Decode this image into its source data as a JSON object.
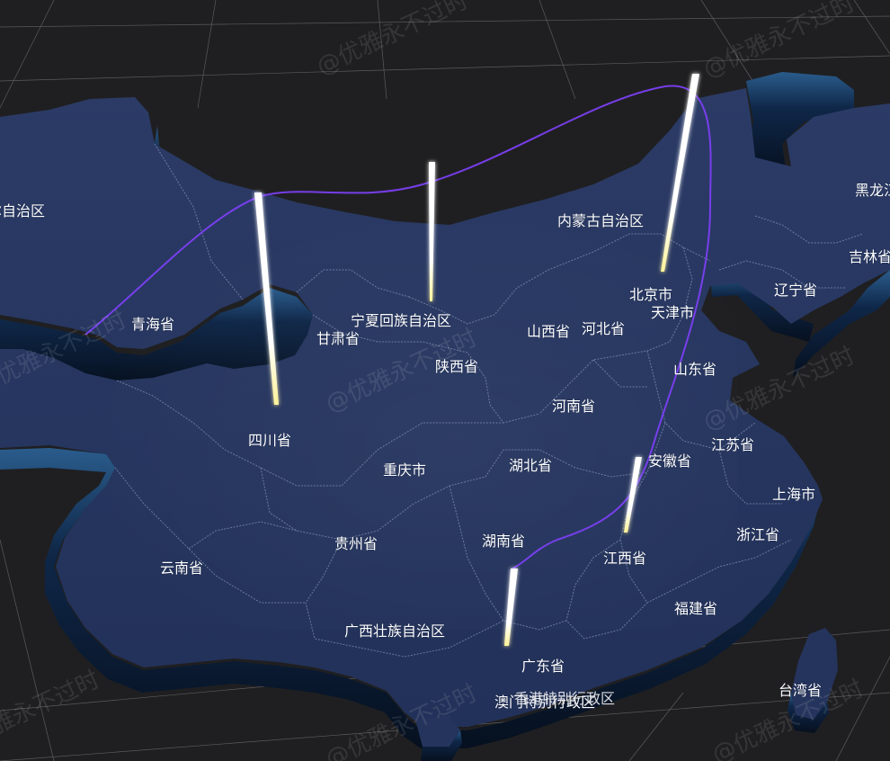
{
  "map": {
    "colors": {
      "background": "#1f1f21",
      "land_top": "#25345c",
      "land_side": "#0c1a33",
      "border_line": "#9fb0d0",
      "route_line": "#7b3ff2",
      "bar_glow": "#fff8c0",
      "grid_line": "#8a8a8a"
    },
    "labels": {
      "xinjiang": "尔自治区",
      "qinghai": "青海省",
      "gansu": "甘肃省",
      "ningxia": "宁夏回族自治区",
      "neimenggu": "内蒙古自治区",
      "heilongjiang": "黑龙江",
      "jilin": "吉林省",
      "liaoning": "辽宁省",
      "beijing": "北京市",
      "tianjin": "天津市",
      "hebei": "河北省",
      "shanxi": "山西省",
      "shaanxi": "陕西省",
      "shandong": "山东省",
      "henan": "河南省",
      "jiangsu": "江苏省",
      "anhui": "安徽省",
      "shanghai": "上海市",
      "hubei": "湖北省",
      "sichuan": "四川省",
      "chongqing": "重庆市",
      "zhejiang": "浙江省",
      "jiangxi": "江西省",
      "hunan": "湖南省",
      "guizhou": "贵州省",
      "yunnan": "云南省",
      "fujian": "福建省",
      "guangxi": "广西壮族自治区",
      "guangdong": "广东省",
      "taiwan": "台湾省",
      "hongkong_macau": "澳门特别行政区",
      "hongkong": "香港特别行政区"
    },
    "watermark": "@优雅永不过时"
  }
}
